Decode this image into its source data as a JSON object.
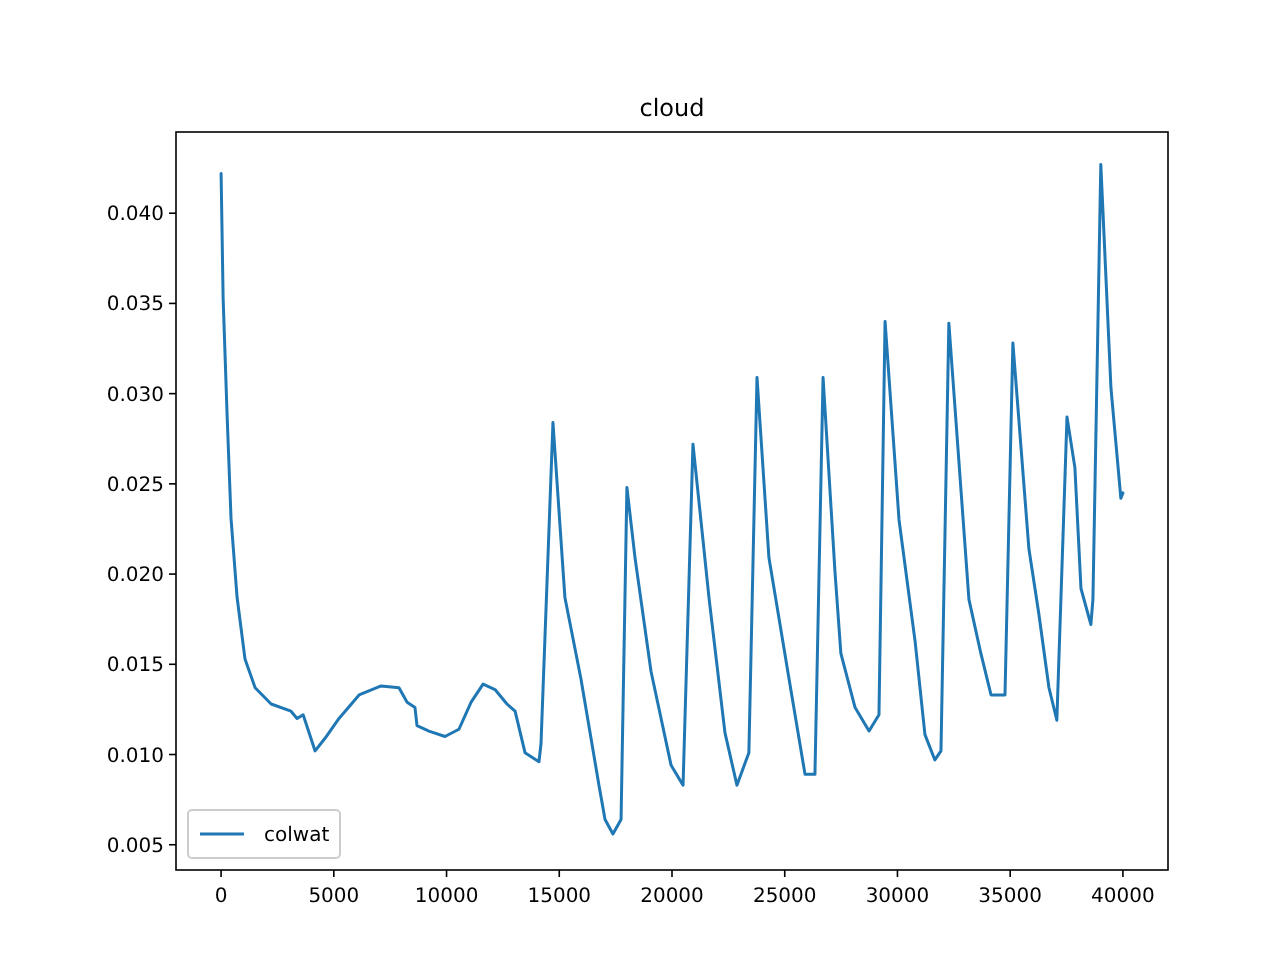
{
  "chart_data": {
    "type": "line",
    "title": "cloud",
    "x": [
      0,
      90,
      270,
      440,
      710,
      1060,
      1510,
      2220,
      3100,
      3370,
      3640,
      4170,
      4610,
      5230,
      6120,
      7100,
      7890,
      8250,
      8600,
      8690,
      9220,
      9930,
      10550,
      11090,
      11620,
      12150,
      12680,
      13040,
      13480,
      14100,
      14190,
      14720,
      15250,
      15960,
      16760,
      17030,
      17380,
      17740,
      18000,
      18360,
      19070,
      19960,
      20490,
      20930,
      21640,
      22350,
      22880,
      23410,
      23770,
      24300,
      25190,
      25900,
      26340,
      26700,
      27230,
      27490,
      28120,
      28740,
      29180,
      29450,
      30070,
      30780,
      31220,
      31660,
      31930,
      32280,
      33170,
      33700,
      34150,
      34770,
      35120,
      35830,
      36270,
      36720,
      37070,
      37520,
      37870,
      38140,
      38580,
      38670,
      39020,
      39470,
      39910,
      40000
    ],
    "series": [
      {
        "name": "colwat",
        "color": "#1f77b4",
        "values": [
          0.0422,
          0.0353,
          0.0287,
          0.0231,
          0.0187,
          0.0153,
          0.0137,
          0.0128,
          0.0124,
          0.012,
          0.0122,
          0.0102,
          0.0109,
          0.012,
          0.0133,
          0.0138,
          0.0137,
          0.0129,
          0.0126,
          0.0116,
          0.0113,
          0.011,
          0.0114,
          0.0129,
          0.0139,
          0.0136,
          0.0128,
          0.0124,
          0.0101,
          0.0096,
          0.0106,
          0.0284,
          0.0187,
          0.0142,
          0.0083,
          0.0064,
          0.0056,
          0.0064,
          0.0248,
          0.0209,
          0.0146,
          0.0094,
          0.0083,
          0.0272,
          0.0187,
          0.0112,
          0.0083,
          0.0101,
          0.0309,
          0.0209,
          0.0142,
          0.0089,
          0.0089,
          0.0309,
          0.0201,
          0.0156,
          0.0126,
          0.0113,
          0.0122,
          0.034,
          0.023,
          0.0163,
          0.0111,
          0.0097,
          0.0102,
          0.0339,
          0.0186,
          0.0156,
          0.0133,
          0.0133,
          0.0328,
          0.0214,
          0.0178,
          0.0137,
          0.0119,
          0.0287,
          0.0259,
          0.0192,
          0.0172,
          0.0186,
          0.0427,
          0.0303,
          0.0242,
          0.0245
        ]
      }
    ],
    "xlim": [
      -2000,
      42000
    ],
    "ylim": [
      0.0036,
      0.0445
    ],
    "xticks": [
      0,
      5000,
      10000,
      15000,
      20000,
      25000,
      30000,
      35000,
      40000
    ],
    "yticks": [
      {
        "value": 0.005,
        "label": "0.005"
      },
      {
        "value": 0.01,
        "label": "0.010"
      },
      {
        "value": 0.015,
        "label": "0.015"
      },
      {
        "value": 0.02,
        "label": "0.020"
      },
      {
        "value": 0.025,
        "label": "0.025"
      },
      {
        "value": 0.03,
        "label": "0.030"
      },
      {
        "value": 0.035,
        "label": "0.035"
      },
      {
        "value": 0.04,
        "label": "0.040"
      }
    ],
    "legend": "bottom left",
    "grid": false
  }
}
